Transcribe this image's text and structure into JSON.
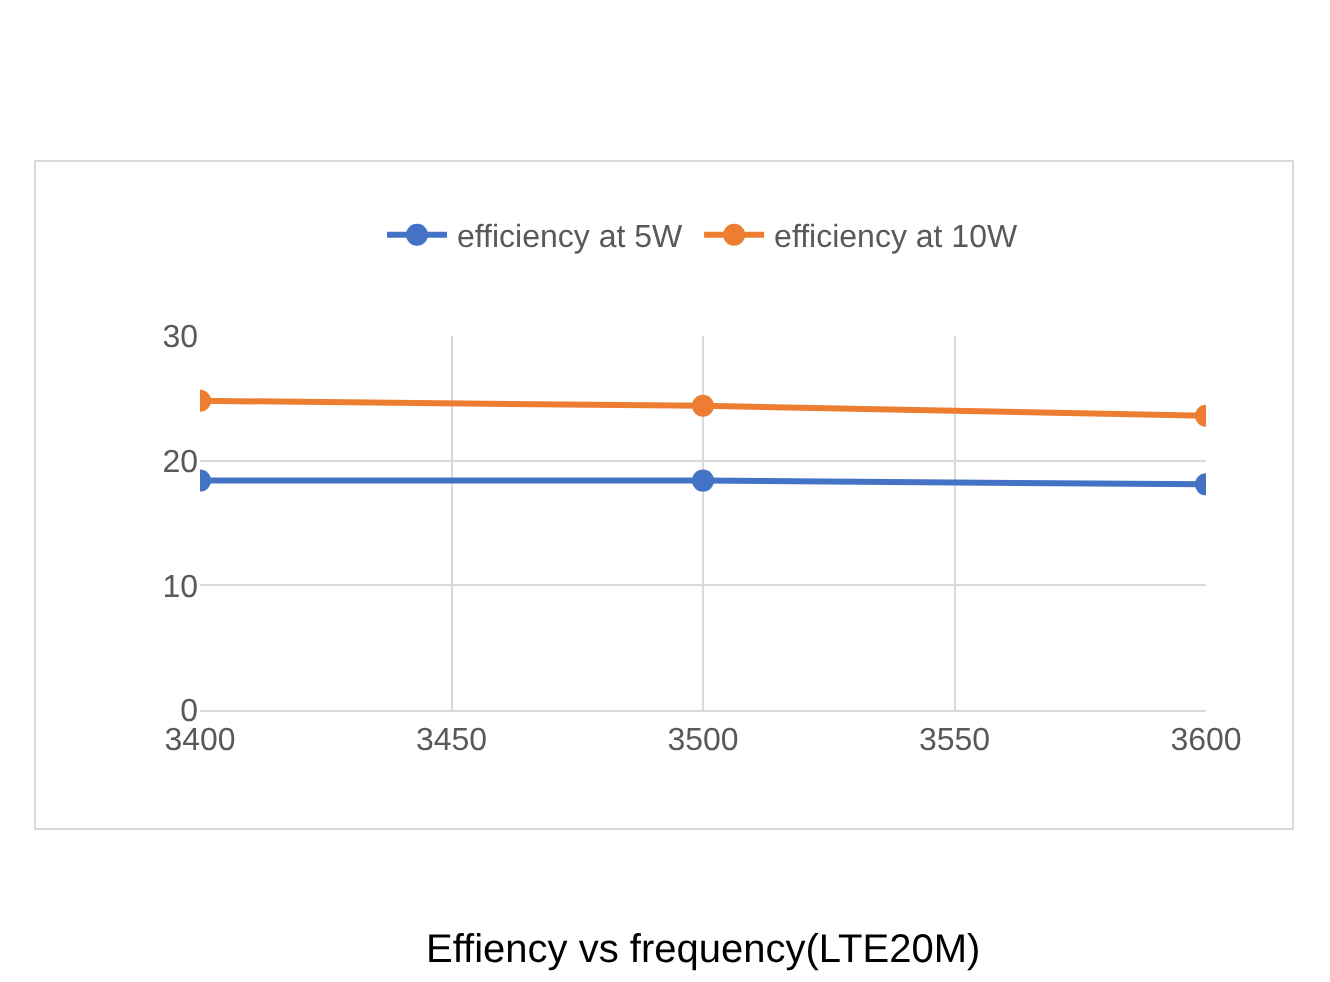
{
  "chart_data": {
    "type": "line",
    "x": [
      3400,
      3500,
      3600
    ],
    "series": [
      {
        "name": "efficiency at 5W",
        "color": "#4472c4",
        "values": [
          18.4,
          18.4,
          18.1
        ]
      },
      {
        "name": "efficiency at 10W",
        "color": "#ed7d31",
        "values": [
          24.8,
          24.4,
          23.6
        ]
      }
    ],
    "xlim": [
      3400,
      3600
    ],
    "xticks": [
      3400,
      3450,
      3500,
      3550,
      3600
    ],
    "ylim": [
      0,
      30
    ],
    "yticks": [
      0,
      10,
      20,
      30
    ],
    "grid": true,
    "legend": "top",
    "marker": "circle",
    "line_style": "solid",
    "annotations": [
      "Effiency vs frequency(LTE20M)"
    ]
  }
}
